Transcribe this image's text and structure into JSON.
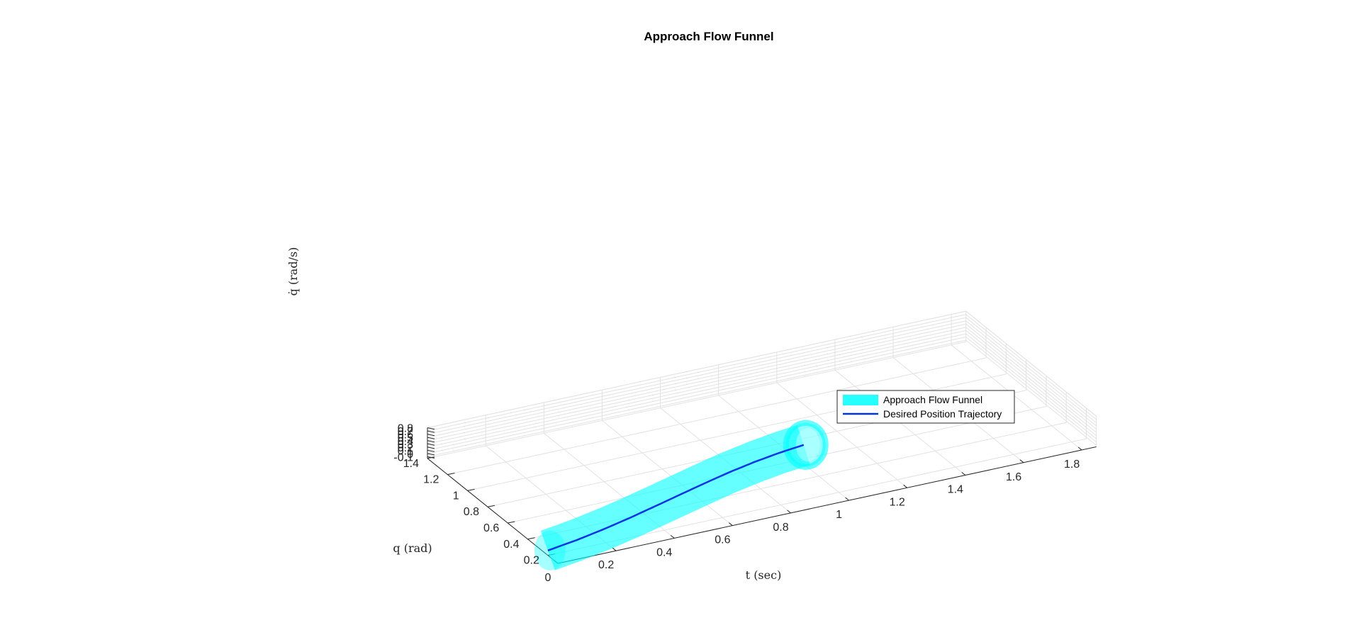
{
  "chart_data": {
    "type": "3d-surface-line",
    "title": "Approach Flow Funnel",
    "xlabel": "t (sec)",
    "ylabel": "q (rad)",
    "zlabel": "q̇ (rad/s)",
    "xlim": [
      0,
      1.85
    ],
    "ylim": [
      0.1,
      1.4
    ],
    "zlim": [
      -0.15,
      0.8
    ],
    "xticks": [
      "0",
      "0.2",
      "0.4",
      "0.6",
      "0.8",
      "1",
      "1.2",
      "1.4",
      "1.6",
      "1.8"
    ],
    "yticks": [
      "0.2",
      "0.4",
      "0.6",
      "0.8",
      "1",
      "1.2",
      "1.4"
    ],
    "zticks": [
      "-0.1",
      "0",
      "0.1",
      "0.2",
      "0.3",
      "0.4",
      "0.5",
      "0.6",
      "0.7",
      "0.8"
    ],
    "grid": true,
    "legend_position": "right",
    "series": [
      {
        "name": "Approach Flow Funnel",
        "kind": "funnel-surface",
        "color": "#00FFFF",
        "radius": 0.075
      },
      {
        "name": "Desired Position Trajectory",
        "kind": "line",
        "color": "#0033E6",
        "t": [
          0,
          0.1,
          0.2,
          0.3,
          0.4,
          0.5,
          0.6,
          0.7,
          0.8,
          0.9,
          1.0
        ],
        "q": [
          0.2,
          0.2055,
          0.2221,
          0.2486,
          0.2838,
          0.3256,
          0.3718,
          0.4198,
          0.4671,
          0.5116,
          0.5511
        ],
        "qdot": [
          0,
          0.11,
          0.215,
          0.31,
          0.39,
          0.45,
          0.49,
          0.51,
          0.505,
          0.48,
          0.44
        ]
      }
    ]
  }
}
